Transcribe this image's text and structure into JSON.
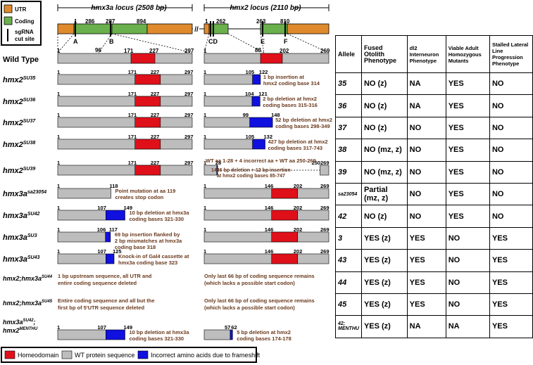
{
  "legend_top": {
    "utr": "UTR",
    "coding": "Coding",
    "sgrna_l1": "sgRNA",
    "sgrna_l2": "cut site"
  },
  "colors": {
    "utr": "#e08a2e",
    "coding": "#6ab04c",
    "homeodomain": "#e0101a",
    "wt": "#bdbdbd",
    "incorrect": "#1010e0",
    "desc": "#6b3a1e"
  },
  "loci": {
    "hmx3a_title": "hmx3a locus (2508 bp)",
    "hmx2_title": "hmx2 locus (2110 bp)",
    "hmx3a_nums": [
      "1",
      "286",
      "287",
      "894"
    ],
    "hmx2_nums": [
      "1",
      "262",
      "263",
      "810"
    ],
    "hmx3a_sites": [
      "A",
      "B"
    ],
    "hmx2_sites": [
      "CD",
      "E",
      "F"
    ],
    "hmx3a_sub": [
      "96"
    ],
    "hmx2_sub": [
      "88",
      "202"
    ],
    "break": "//"
  },
  "wild_type": "Wild Type",
  "rows": [
    {
      "gene": "hmx2",
      "sup": "SU35",
      "left": {
        "n1": "1",
        "n2": "171",
        "n3": "227",
        "n4": "297"
      },
      "right": {
        "n1": "1",
        "n2": "105",
        "n3": "122"
      },
      "desc": [
        "1 bp insertion at",
        "hmx2 coding base 314"
      ]
    },
    {
      "gene": "hmx2",
      "sup": "SU36",
      "left": {
        "n1": "1",
        "n2": "171",
        "n3": "227",
        "n4": "297"
      },
      "right": {
        "n1": "1",
        "n2": "104",
        "n3": "121"
      },
      "desc": [
        "2 bp deletion at hmx2",
        "coding bases 315-316"
      ]
    },
    {
      "gene": "hmx2",
      "sup": "SU37",
      "left": {
        "n1": "1",
        "n2": "171",
        "n3": "227",
        "n4": "297"
      },
      "right": {
        "n1": "1",
        "n2": "99",
        "n3": "148"
      },
      "desc": [
        "52 bp deletion at hmx2",
        "coding bases 298-349"
      ]
    },
    {
      "gene": "hmx2",
      "sup": "SU38",
      "left": {
        "n1": "1",
        "n2": "171",
        "n3": "227",
        "n4": "297"
      },
      "right": {
        "n1": "1",
        "n2": "105",
        "n3": "132"
      },
      "desc": [
        "427 bp deletion at hmx2",
        "coding bases 317-743"
      ]
    },
    {
      "gene": "hmx2",
      "sup": "SU39",
      "left": {
        "n1": "1",
        "n2": "171",
        "n3": "227",
        "n4": "297"
      },
      "right": {
        "n1": "1",
        "n2": "28",
        "n3": "250",
        "n4": "269"
      },
      "desc": [
        "WT aa 1-28 + 4 incorrect aa + WT aa 250-269",
        "1446 bp deletion + 12 bp insertion",
        "at hmx2 coding bases 85-747"
      ]
    },
    {
      "gene": "hmx3a",
      "sup": "sa23054",
      "left": {
        "n1": "1",
        "n2": "118"
      },
      "right": {
        "n1": "1",
        "n2": "146",
        "n3": "202",
        "n4": "269"
      },
      "desc": [
        "Point mutation at aa 119",
        "creates stop codon"
      ]
    },
    {
      "gene": "hmx3a",
      "sup": "SU42",
      "left": {
        "n1": "1",
        "n2": "107",
        "n3": "149"
      },
      "right": {
        "n1": "1",
        "n2": "146",
        "n3": "202",
        "n4": "269"
      },
      "desc": [
        "10 bp deletion at hmx3a",
        "coding bases 321-330"
      ]
    },
    {
      "gene": "hmx3a",
      "sup": "SU3",
      "left": {
        "n1": "1",
        "n2": "106",
        "n3": "117"
      },
      "right": {
        "n1": "1",
        "n2": "146",
        "n3": "202",
        "n4": "269"
      },
      "desc": [
        "69 bp insertion flanked by",
        "2 bp mismatches at hmx3a",
        "coding base 318"
      ]
    },
    {
      "gene": "hmx3a",
      "sup": "SU43",
      "left": {
        "n1": "1",
        "n2": "107",
        "n3": "125"
      },
      "right": {
        "n1": "1",
        "n2": "146",
        "n3": "202",
        "n4": "269"
      },
      "desc": [
        "Knock-in of Gal4 cassette at",
        "hmx3a coding base 323"
      ]
    }
  ],
  "wt_nums": {
    "l1": "1",
    "l2": "171",
    "l3": "227",
    "l4": "297",
    "r1": "1",
    "r2": "146",
    "r3": "202",
    "r4": "269"
  },
  "del_rows": [
    {
      "gene": "hmx2;hmx3a",
      "sup": "SU44",
      "left": [
        "1 bp upstream sequence, all UTR and",
        "entire coding sequence deleted"
      ],
      "right": [
        "Only last 66 bp of coding sequence remains",
        "(which lacks a possible start codon)"
      ]
    },
    {
      "gene": "hmx2;hmx3a",
      "sup": "SU45",
      "left": [
        "Entire coding sequence and all but the",
        "first bp of 5'UTR sequence deleted"
      ],
      "right": [
        "Only last 66 bp of coding sequence remains",
        "(which lacks a possible start codon)"
      ]
    }
  ],
  "last_row": {
    "gene1": "hmx3a",
    "sup1": "SU42",
    "sep": ";",
    "gene2": "hmx2",
    "sup2": "MENTHU",
    "left": {
      "n1": "1",
      "n2": "107",
      "n3": "149"
    },
    "right": {
      "n1": "57",
      "n2": "62"
    },
    "desc_left": [
      "10 bp deletion at hmx3a",
      "coding bases 321-330"
    ],
    "desc_right": [
      "5 bp deletion at hmx2",
      "coding bases 174-178"
    ]
  },
  "bottom_legend": {
    "homeodomain": "Homeodomain",
    "wt": "WT protein sequence",
    "incorrect": "Incorrect amino acids due to frameshift"
  },
  "table": {
    "headers": [
      "Allele",
      "Fused Otolith Phenotype",
      "dl2 Interneuron Phenotype",
      "Viable Adult Homozygous Mutants",
      "Stalled Lateral Line Progression Phenotype"
    ],
    "rows": [
      [
        "35",
        "NO (z)",
        "NA",
        "YES",
        "NO"
      ],
      [
        "36",
        "NO (z)",
        "NA",
        "YES",
        "NO"
      ],
      [
        "37",
        "NO (z)",
        "NO",
        "YES",
        "NO"
      ],
      [
        "38",
        "NO (mz, z)",
        "NO",
        "YES",
        "NO"
      ],
      [
        "39",
        "NO (mz, z)",
        "NO",
        "YES",
        "NO"
      ],
      [
        "sa23054",
        "Partial (mz, z)",
        "NO",
        "YES",
        "NO"
      ],
      [
        "42",
        "NO (z)",
        "NO",
        "YES",
        "NO"
      ],
      [
        "3",
        "YES (z)",
        "YES",
        "NO",
        "YES"
      ],
      [
        "43",
        "YES (z)",
        "YES",
        "NO",
        "YES"
      ],
      [
        "44",
        "YES (z)",
        "YES",
        "NO",
        "YES"
      ],
      [
        "45",
        "YES (z)",
        "YES",
        "NO",
        "YES"
      ],
      [
        "42; MENTHU",
        "YES (z)",
        "NA",
        "NA",
        "YES"
      ]
    ]
  }
}
